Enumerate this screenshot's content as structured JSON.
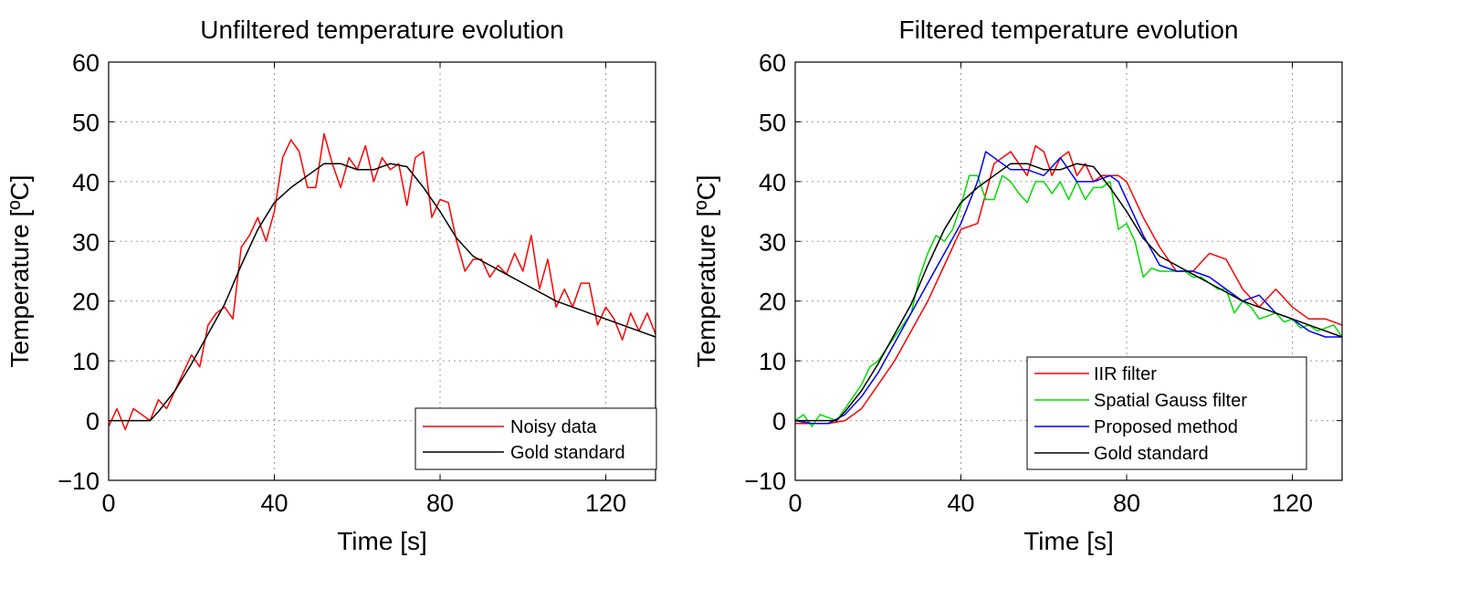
{
  "chart_data": [
    {
      "type": "line",
      "title": "Unfiltered temperature evolution",
      "xlabel": "Time [s]",
      "ylabel": "Temperature [ºC]",
      "xlim": [
        0,
        132
      ],
      "ylim": [
        -10,
        60
      ],
      "xticks": [
        0,
        40,
        80,
        120
      ],
      "yticks": [
        -10,
        0,
        10,
        20,
        30,
        40,
        50,
        60
      ],
      "xtick_labels": [
        "0",
        "40",
        "80",
        "120"
      ],
      "ytick_labels": [
        "−10",
        "0",
        "10",
        "20",
        "30",
        "40",
        "50",
        "60"
      ],
      "grid": true,
      "legend_position": "bottom-right",
      "series": [
        {
          "name": "Noisy data",
          "color": "#ff0000",
          "x": [
            0,
            2,
            4,
            6,
            8,
            10,
            12,
            14,
            16,
            18,
            20,
            22,
            24,
            26,
            28,
            30,
            32,
            34,
            36,
            38,
            40,
            42,
            44,
            46,
            48,
            50,
            52,
            54,
            56,
            58,
            60,
            62,
            64,
            66,
            68,
            70,
            72,
            74,
            76,
            78,
            80,
            82,
            84,
            86,
            88,
            90,
            92,
            94,
            96,
            98,
            100,
            102,
            104,
            106,
            108,
            110,
            112,
            114,
            116,
            118,
            120,
            122,
            124,
            126,
            128,
            130,
            132
          ],
          "y": [
            -1,
            2,
            -1.5,
            2,
            1,
            0,
            3.5,
            2,
            5,
            8,
            11,
            9,
            16,
            18,
            19,
            17,
            29,
            31,
            34,
            30,
            35,
            44,
            47,
            45,
            39,
            39,
            48,
            43,
            39,
            44,
            42,
            46,
            40,
            44,
            42,
            43,
            36,
            44,
            45,
            34,
            37,
            36.5,
            30,
            25,
            27,
            27,
            24,
            26,
            24.5,
            28,
            25,
            31,
            22,
            27,
            19,
            22,
            19,
            23,
            23,
            16,
            19,
            17,
            13.5,
            18,
            15,
            18,
            14.5
          ]
        },
        {
          "name": "Gold standard",
          "color": "#000000",
          "x": [
            0,
            4,
            8,
            10,
            12,
            16,
            20,
            24,
            28,
            32,
            36,
            40,
            44,
            48,
            52,
            56,
            60,
            64,
            68,
            72,
            76,
            80,
            84,
            88,
            92,
            96,
            100,
            104,
            108,
            112,
            116,
            120,
            124,
            128,
            132
          ],
          "y": [
            0,
            0,
            0,
            0,
            1.5,
            5,
            9.5,
            14.5,
            19.5,
            26,
            32,
            36.5,
            39,
            41,
            43,
            43,
            42,
            42,
            43,
            42.5,
            39,
            35,
            30.5,
            27.5,
            26,
            24.5,
            23,
            21.5,
            20,
            19,
            18,
            17,
            16,
            15,
            14
          ]
        }
      ]
    },
    {
      "type": "line",
      "title": "Filtered temperature evolution",
      "xlabel": "Time [s]",
      "ylabel": "Temperature [ºC]",
      "xlim": [
        0,
        132
      ],
      "ylim": [
        -10,
        60
      ],
      "xticks": [
        0,
        40,
        80,
        120
      ],
      "yticks": [
        -10,
        0,
        10,
        20,
        30,
        40,
        50,
        60
      ],
      "xtick_labels": [
        "0",
        "40",
        "80",
        "120"
      ],
      "ytick_labels": [
        "−10",
        "0",
        "10",
        "20",
        "30",
        "40",
        "50",
        "60"
      ],
      "grid": true,
      "legend_position": "bottom-right",
      "series": [
        {
          "name": "IIR filter",
          "color": "#ff0000",
          "x": [
            0,
            4,
            8,
            12,
            16,
            20,
            24,
            28,
            32,
            36,
            40,
            44,
            48,
            52,
            56,
            58,
            60,
            62,
            64,
            66,
            68,
            70,
            72,
            74,
            76,
            78,
            80,
            84,
            88,
            92,
            96,
            100,
            104,
            108,
            112,
            116,
            120,
            124,
            128,
            132
          ],
          "y": [
            -0.5,
            -0.5,
            -0.5,
            0,
            2,
            6,
            10,
            15,
            20,
            26,
            32,
            33,
            43,
            45,
            41,
            46,
            45,
            41,
            44,
            45,
            41,
            43,
            40,
            41,
            41,
            41,
            40,
            34,
            29,
            25,
            25,
            28,
            27,
            22,
            19,
            22,
            19,
            17,
            17,
            16
          ]
        },
        {
          "name": "Spatial Gauss filter",
          "color": "#00dd00",
          "x": [
            0,
            2,
            4,
            6,
            8,
            10,
            12,
            14,
            16,
            18,
            20,
            22,
            24,
            26,
            28,
            30,
            32,
            34,
            36,
            38,
            40,
            42,
            44,
            46,
            48,
            50,
            52,
            54,
            56,
            58,
            60,
            62,
            64,
            66,
            68,
            70,
            72,
            74,
            76,
            78,
            80,
            82,
            84,
            86,
            88,
            90,
            92,
            94,
            96,
            98,
            100,
            102,
            104,
            106,
            108,
            110,
            112,
            114,
            116,
            118,
            120,
            122,
            124,
            126,
            128,
            130,
            132
          ],
          "y": [
            0,
            1,
            -1,
            1,
            0.5,
            0,
            2,
            4,
            6,
            9,
            10,
            12,
            14,
            16,
            18,
            24,
            28,
            31,
            30,
            32,
            36,
            41,
            41,
            37,
            37,
            41,
            40,
            38,
            36.5,
            40,
            40,
            38,
            40,
            37,
            40,
            37,
            39,
            39,
            40,
            32,
            33,
            30,
            24,
            25.5,
            25,
            25,
            25,
            25,
            24,
            24,
            23,
            22,
            22,
            18,
            20,
            19,
            17,
            17.5,
            18,
            16.5,
            17,
            15.5,
            16,
            15,
            15.5,
            16,
            14
          ]
        },
        {
          "name": "Proposed method",
          "color": "#0000ff",
          "x": [
            0,
            4,
            8,
            12,
            16,
            20,
            24,
            28,
            32,
            36,
            40,
            44,
            46,
            48,
            52,
            56,
            60,
            64,
            68,
            72,
            76,
            78,
            80,
            84,
            88,
            92,
            96,
            100,
            104,
            108,
            112,
            116,
            120,
            124,
            128,
            132
          ],
          "y": [
            0,
            -0.5,
            -0.5,
            1,
            4,
            8,
            13,
            18,
            23,
            28,
            33,
            40,
            45,
            44,
            42,
            42,
            41,
            44,
            40,
            40,
            41,
            40,
            37,
            31,
            26,
            25,
            25,
            24,
            22,
            20,
            21,
            18,
            17,
            15,
            14,
            14
          ]
        },
        {
          "name": "Gold standard",
          "color": "#000000",
          "x": [
            0,
            4,
            8,
            10,
            12,
            16,
            20,
            24,
            28,
            32,
            36,
            40,
            44,
            48,
            52,
            56,
            60,
            64,
            68,
            72,
            76,
            80,
            84,
            88,
            92,
            96,
            100,
            104,
            108,
            112,
            116,
            120,
            124,
            128,
            132
          ],
          "y": [
            0,
            0,
            0,
            0,
            1.5,
            5,
            9.5,
            14.5,
            19.5,
            26,
            32,
            36.5,
            39,
            41,
            43,
            43,
            42,
            42,
            43,
            42.5,
            39,
            35,
            30.5,
            27.5,
            26,
            24.5,
            23,
            21.5,
            20,
            19,
            18,
            17,
            16,
            15,
            14
          ]
        }
      ]
    }
  ]
}
